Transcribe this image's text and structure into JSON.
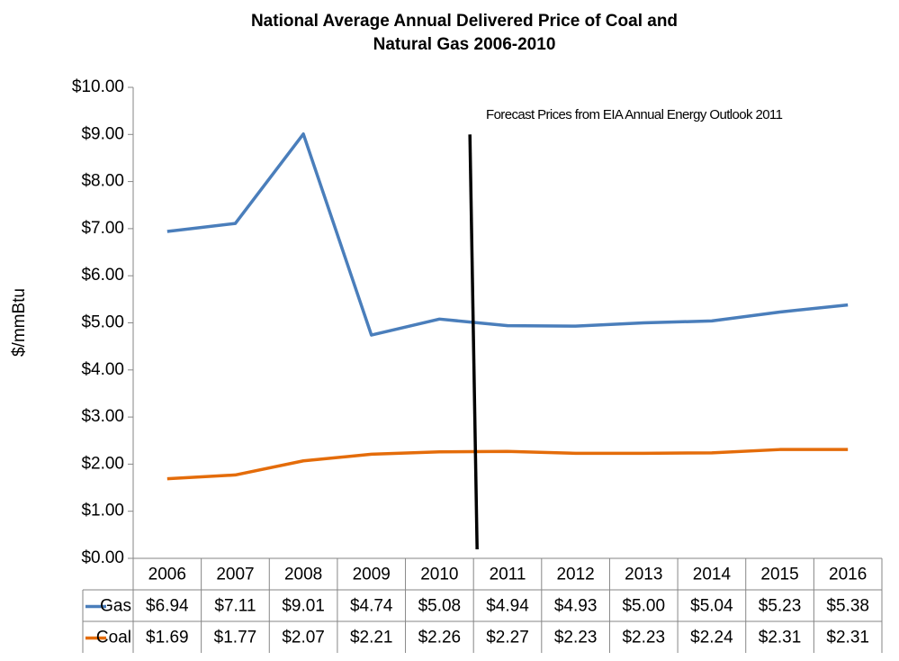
{
  "chart_data": {
    "type": "line",
    "title": [
      "National Average Annual Delivered Price of Coal and",
      "Natural Gas 2006-2010"
    ],
    "y_label": "$/mmBtu",
    "annotation": "Forecast Prices from EIA Annual Energy Outlook 2011",
    "categories": [
      "2006",
      "2007",
      "2008",
      "2009",
      "2010",
      "2011",
      "2012",
      "2013",
      "2014",
      "2015",
      "2016"
    ],
    "series": [
      {
        "name": "Gas",
        "color": "#4a7ebb",
        "values": [
          6.94,
          7.11,
          9.01,
          4.74,
          5.08,
          4.94,
          4.93,
          5.0,
          5.04,
          5.23,
          5.38
        ],
        "value_labels": [
          "$6.94",
          "$7.11",
          "$9.01",
          "$4.74",
          "$5.08",
          "$4.94",
          "$4.93",
          "$5.00",
          "$5.04",
          "$5.23",
          "$5.38"
        ]
      },
      {
        "name": "Coal",
        "color": "#e46c0a",
        "values": [
          1.69,
          1.77,
          2.07,
          2.21,
          2.26,
          2.27,
          2.23,
          2.23,
          2.24,
          2.31,
          2.31
        ],
        "value_labels": [
          "$1.69",
          "$1.77",
          "$2.07",
          "$2.21",
          "$2.26",
          "$2.27",
          "$2.23",
          "$2.23",
          "$2.24",
          "$2.31",
          "$2.31"
        ]
      }
    ],
    "ylim": [
      0,
      10
    ],
    "yticks": [
      {
        "value": 0,
        "label": "$0.00"
      },
      {
        "value": 1,
        "label": "$1.00"
      },
      {
        "value": 2,
        "label": "$2.00"
      },
      {
        "value": 3,
        "label": "$3.00"
      },
      {
        "value": 4,
        "label": "$4.00"
      },
      {
        "value": 5,
        "label": "$5.00"
      },
      {
        "value": 6,
        "label": "$6.00"
      },
      {
        "value": 7,
        "label": "$7.00"
      },
      {
        "value": 8,
        "label": "$8.00"
      },
      {
        "value": 9,
        "label": "$9.00"
      },
      {
        "value": 10,
        "label": "$10.00"
      }
    ],
    "grid": false
  }
}
